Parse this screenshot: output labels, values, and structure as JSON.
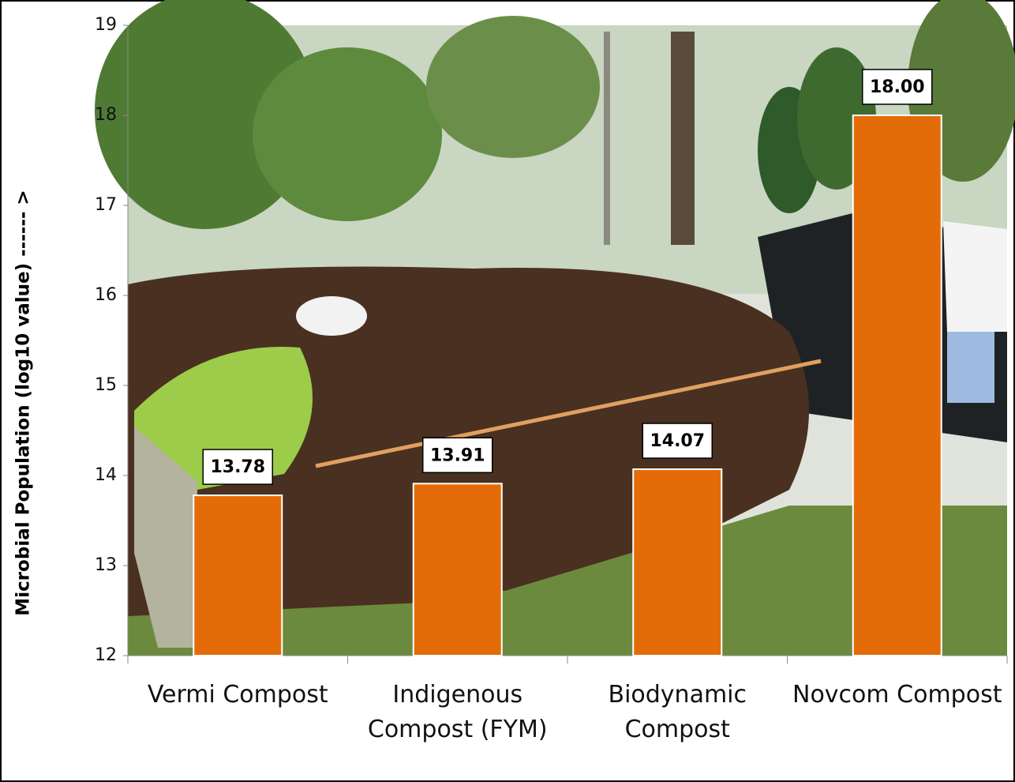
{
  "chart_data": {
    "type": "bar",
    "y_label": "Microbial Population (log10 value) ------ >",
    "categories": [
      "Vermi Compost",
      "Indigenous Compost (FYM)",
      "Biodynamic Compost",
      "Novcom Compost"
    ],
    "values": [
      13.78,
      13.91,
      14.07,
      18.0
    ],
    "value_labels": [
      "13.78",
      "13.91",
      "14.07",
      "18.00"
    ],
    "color": "#e36c09",
    "ylim": [
      12,
      19
    ],
    "yticks": [
      12,
      13,
      14,
      15,
      16,
      17,
      18,
      19
    ]
  }
}
